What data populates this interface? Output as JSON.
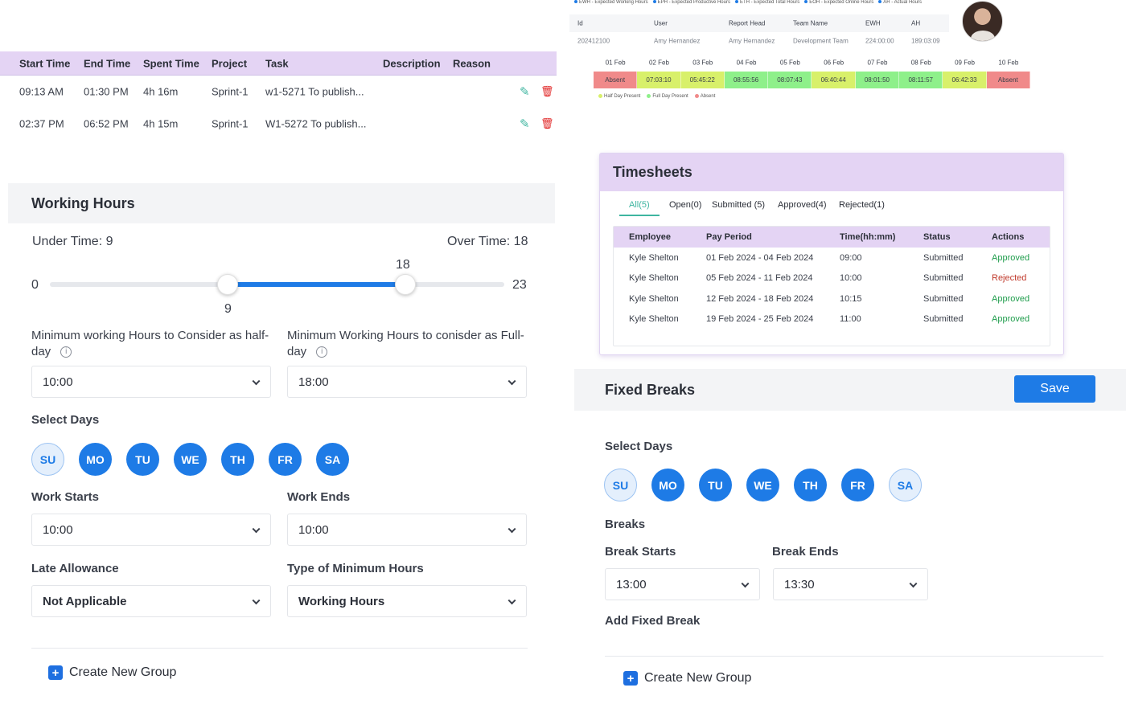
{
  "tasks": {
    "columns": [
      "Start Time",
      "End Time",
      "Spent Time",
      "Project",
      "Task",
      "Description",
      "Reason"
    ],
    "rows": [
      {
        "start": "09:13 AM",
        "end": "01:30 PM",
        "spent": "4h 16m",
        "project": "Sprint-1",
        "task": "w1-5271 To publish..."
      },
      {
        "start": "02:37 PM",
        "end": "06:52 PM",
        "spent": "4h 15m",
        "project": "Sprint-1",
        "task": "W1-5272 To publish..."
      }
    ],
    "edit_icon": "edit-icon",
    "delete_icon": "trash-icon"
  },
  "working_hours": {
    "title": "Working Hours",
    "under_time_label": "Under Time: 9",
    "over_time_label": "Over Time: 18",
    "slider": {
      "min": 0,
      "max": 23,
      "low": 9,
      "high": 18,
      "min_label": "0",
      "max_label": "23",
      "low_label": "9",
      "high_label": "18"
    },
    "half_day_label_1": "Minimum working Hours to Consider as half-",
    "half_day_label_2": "day",
    "half_day_value": "10:00",
    "full_day_label_1": "Minimum Working Hours to conisder as Full-",
    "full_day_label_2": "day",
    "full_day_value": "18:00",
    "select_days_label": "Select Days",
    "days": [
      {
        "label": "SU",
        "selected": false
      },
      {
        "label": "MO",
        "selected": true
      },
      {
        "label": "TU",
        "selected": true
      },
      {
        "label": "WE",
        "selected": true
      },
      {
        "label": "TH",
        "selected": true
      },
      {
        "label": "FR",
        "selected": true
      },
      {
        "label": "SA",
        "selected": true
      }
    ],
    "work_starts_label": "Work Starts",
    "work_starts_value": "10:00",
    "work_ends_label": "Work Ends",
    "work_ends_value": "10:00",
    "late_allowance_label": "Late Allowance",
    "late_allowance_value": "Not Applicable",
    "min_hours_type_label": "Type of Minimum Hours",
    "min_hours_type_value": "Working Hours",
    "create_group_label": "Create New Group",
    "info_icon": "info-icon"
  },
  "attendance": {
    "legend": [
      "EWH - Expected Working Hours",
      "EPH - Expected Productive Hours",
      "ETH - Expected Total Hours",
      "EOH - Expected Online Hours",
      "AH - Actual Hours"
    ],
    "columns": [
      "Id",
      "User",
      "Report Head",
      "Team Name",
      "EWH",
      "AH"
    ],
    "row": {
      "id": "202412100",
      "user": "Amy Hernandez",
      "report_head": "Amy Hernandez",
      "team": "Development Team",
      "ewh": "224:00:00",
      "ah": "189:03:09"
    },
    "dates": [
      "01 Feb",
      "02 Feb",
      "03 Feb",
      "04 Feb",
      "05 Feb",
      "06 Feb",
      "07 Feb",
      "08 Feb",
      "09 Feb",
      "10 Feb"
    ],
    "cells": [
      {
        "value": "Absent",
        "color": "#f08a8a"
      },
      {
        "value": "07:03:10",
        "color": "#d8f06a"
      },
      {
        "value": "05:45:22",
        "color": "#d8f06a"
      },
      {
        "value": "08:55:56",
        "color": "#8ef08a"
      },
      {
        "value": "08:07:43",
        "color": "#8ef08a"
      },
      {
        "value": "06:40:44",
        "color": "#d8f06a"
      },
      {
        "value": "08:01:50",
        "color": "#8ef08a"
      },
      {
        "value": "08:11:57",
        "color": "#8ef08a"
      },
      {
        "value": "06:42:33",
        "color": "#d8f06a"
      },
      {
        "value": "Absent",
        "color": "#f08a8a"
      }
    ],
    "key": [
      {
        "label": "Half Day Present",
        "color": "#d8f06a"
      },
      {
        "label": "Full Day Present",
        "color": "#8ef08a"
      },
      {
        "label": "Absent",
        "color": "#f08a8a"
      }
    ]
  },
  "timesheets": {
    "title": "Timesheets",
    "tabs": [
      "All(5)",
      "Open(0)",
      "Submitted (5)",
      "Approved(4)",
      "Rejected(1)"
    ],
    "columns": [
      "Employee",
      "Pay Period",
      "Time(hh:mm)",
      "Status",
      "Actions"
    ],
    "rows": [
      {
        "employee": "Kyle Shelton",
        "period": "01 Feb 2024 - 04 Feb 2024",
        "time": "09:00",
        "status": "Submitted",
        "action": "Approved"
      },
      {
        "employee": "Kyle Shelton",
        "period": "05 Feb 2024 - 11 Feb 2024",
        "time": "10:00",
        "status": "Submitted",
        "action": "Rejected"
      },
      {
        "employee": "Kyle Shelton",
        "period": "12 Feb 2024 - 18 Feb 2024",
        "time": "10:15",
        "status": "Submitted",
        "action": "Approved"
      },
      {
        "employee": "Kyle Shelton",
        "period": "19 Feb 2024 - 25 Feb 2024",
        "time": "11:00",
        "status": "Submitted",
        "action": "Approved"
      }
    ]
  },
  "fixed_breaks": {
    "title": "Fixed Breaks",
    "save_label": "Save",
    "select_days_label": "Select Days",
    "days": [
      {
        "label": "SU",
        "selected": false
      },
      {
        "label": "MO",
        "selected": true
      },
      {
        "label": "TU",
        "selected": true
      },
      {
        "label": "WE",
        "selected": true
      },
      {
        "label": "TH",
        "selected": true
      },
      {
        "label": "FR",
        "selected": true
      },
      {
        "label": "SA",
        "selected": false
      }
    ],
    "breaks_label": "Breaks",
    "break_starts_label": "Break Starts",
    "break_starts_value": "13:00",
    "break_ends_label": "Break Ends",
    "break_ends_value": "13:30",
    "add_fixed_break_label": "Add Fixed Break",
    "create_group_label": "Create New Group"
  },
  "colors": {
    "accent": "#1e7be6",
    "header_purple": "#e4d4f4",
    "approved": "#1f9d4c",
    "rejected": "#c0392b",
    "tab_active": "#3fb5a0"
  }
}
